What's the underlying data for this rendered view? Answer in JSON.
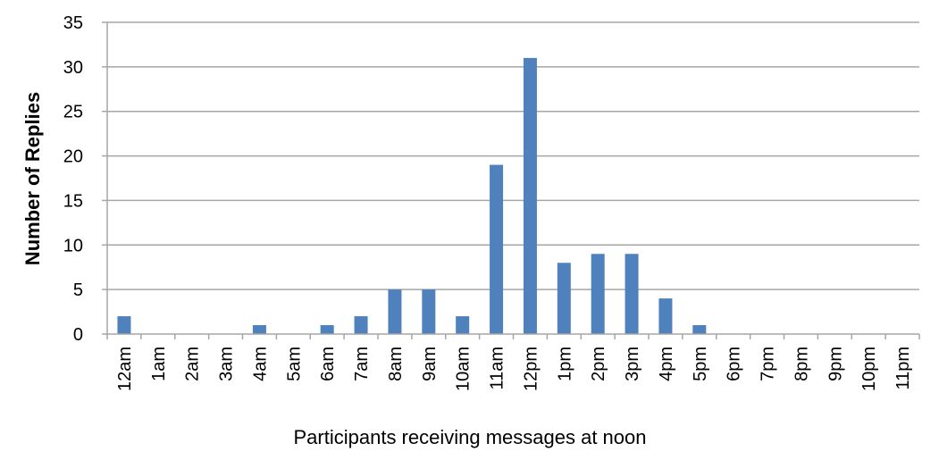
{
  "chart_data": {
    "type": "bar",
    "title": "",
    "xlabel": "Participants receiving messages at noon",
    "ylabel": "Number of Replies",
    "ylim": [
      0,
      35
    ],
    "yticks": [
      0,
      5,
      10,
      15,
      20,
      25,
      30,
      35
    ],
    "grid": true,
    "legend": "none",
    "bar_color": "#4f81bd",
    "grid_color": "#a6a6a6",
    "categories": [
      "12am",
      "1am",
      "2am",
      "3am",
      "4am",
      "5am",
      "6am",
      "7am",
      "8am",
      "9am",
      "10am",
      "11am",
      "12pm",
      "1pm",
      "2pm",
      "3pm",
      "4pm",
      "5pm",
      "6pm",
      "7pm",
      "8pm",
      "9pm",
      "10pm",
      "11pm"
    ],
    "values": [
      2,
      0,
      0,
      0,
      1,
      0,
      1,
      2,
      5,
      5,
      2,
      19,
      31,
      8,
      9,
      9,
      4,
      1,
      0,
      0,
      0,
      0,
      0,
      0
    ]
  }
}
